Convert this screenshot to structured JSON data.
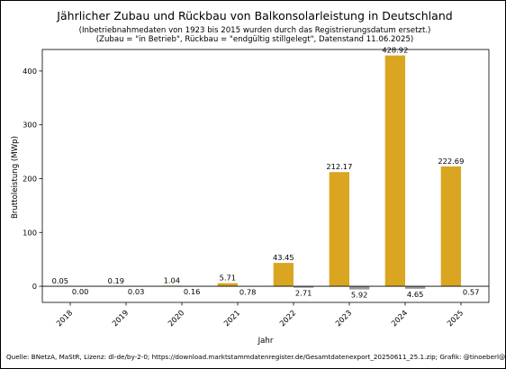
{
  "chart_data": {
    "type": "bar",
    "title": "Jährlicher Zubau und Rückbau von Balkonsolarleistung in Deutschland",
    "subtitle_lines": [
      "(Inbetriebnahmedaten von 1923 bis 2015 wurden durch das Registrierungsdatum ersetzt.)",
      "(Zubau = \"in Betrieb\", Rückbau = \"endgültig stillgelegt\", Datenstand 11.06.2025)"
    ],
    "xlabel": "Jahr",
    "ylabel": "Bruttoleistung (MWp)",
    "categories": [
      "2018",
      "2019",
      "2020",
      "2021",
      "2022",
      "2023",
      "2024",
      "2025"
    ],
    "series": [
      {
        "values": [
          0.05,
          0.19,
          1.04,
          5.71,
          43.45,
          212.17,
          428.92,
          222.69
        ],
        "color": "#DAA520"
      },
      {
        "values": [
          0.0,
          -0.03,
          -0.16,
          -0.78,
          -2.71,
          -5.92,
          -4.65,
          -0.57
        ],
        "color": "#999999"
      }
    ],
    "data_labels_top": [
      "0.05",
      "0.19",
      "1.04",
      "5.71",
      "43.45",
      "212.17",
      "428.92",
      "222.69"
    ],
    "data_labels_bottom": [
      "0.00",
      "0.03",
      "0.16",
      "0.78",
      "2.71",
      "5.92",
      "4.65",
      "0.57"
    ],
    "yticks": [
      "0",
      "100",
      "200",
      "300",
      "400"
    ],
    "ylim": [
      -30,
      440
    ],
    "grid": false,
    "source": "Quelle: BNetzA, MaStR, Lizenz: dl-de/by-2-0; https://download.marktstammdatenregister.de/Gesamtdatenexport_20250611_25.1.zip; Grafik: @tinoeberl@mastodon.online"
  }
}
